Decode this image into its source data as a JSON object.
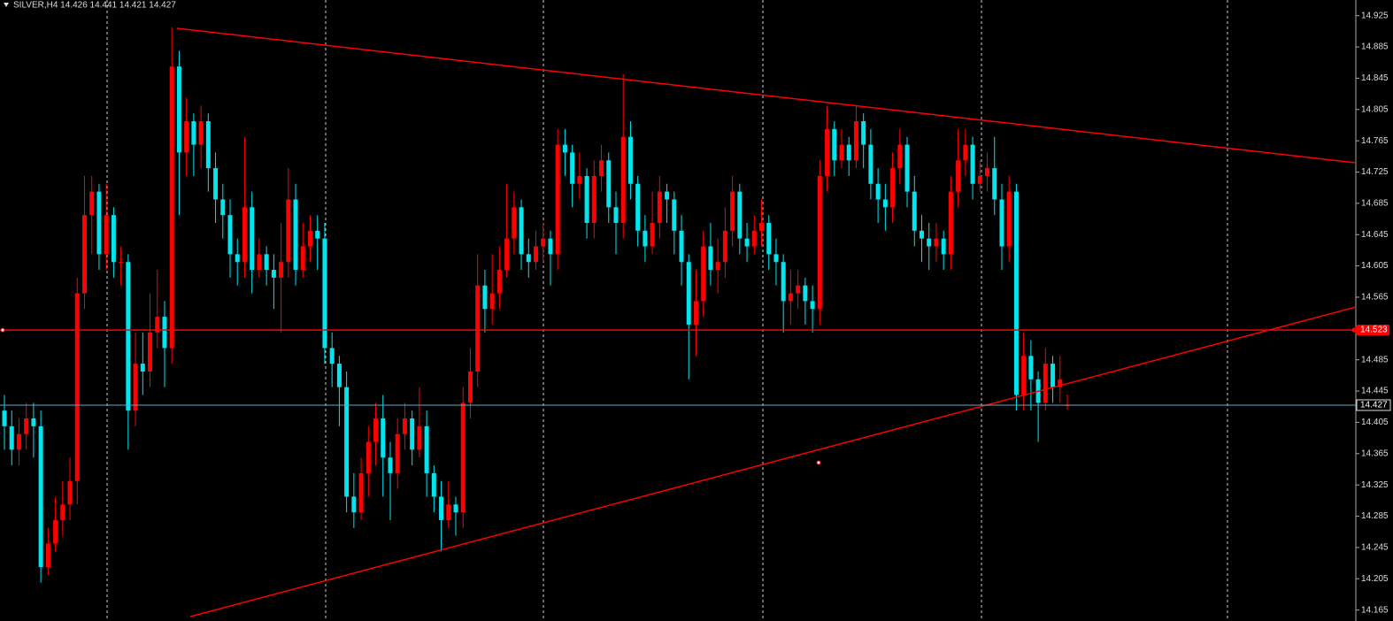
{
  "chart_data": {
    "type": "candlestick",
    "title": "SILVER,H4 14.426 14.441 14.421 14.427",
    "up_color": "#ff0000",
    "down_color": "#00e5ee",
    "ylim": [
      14.151,
      14.945
    ],
    "yticks": [
      14.925,
      14.885,
      14.845,
      14.805,
      14.765,
      14.725,
      14.685,
      14.645,
      14.605,
      14.565,
      14.525,
      14.485,
      14.445,
      14.405,
      14.365,
      14.325,
      14.285,
      14.245,
      14.205,
      14.165
    ],
    "hline": 14.523,
    "hline_color": "#ff0000",
    "bid": 14.427,
    "bid_color": "#5fa8c8",
    "open": [
      14.42,
      14.4,
      14.37,
      14.39,
      14.41,
      14.4,
      14.22,
      14.25,
      14.28,
      14.3,
      14.33,
      14.57,
      14.67,
      14.7,
      14.62,
      14.67,
      14.61,
      14.61,
      14.42,
      14.48,
      14.47,
      14.52,
      14.54,
      14.5,
      14.86,
      14.75,
      14.79,
      14.76,
      14.79,
      14.73,
      14.69,
      14.67,
      14.62,
      14.61,
      14.68,
      14.6,
      14.62,
      14.6,
      14.59,
      14.61,
      14.69,
      14.6,
      14.63,
      14.65,
      14.64,
      14.5,
      14.48,
      14.45,
      14.31,
      14.29,
      14.34,
      14.38,
      14.41,
      14.36,
      14.34,
      14.39,
      14.41,
      14.37,
      14.4,
      14.34,
      14.31,
      14.28,
      14.3,
      14.29,
      14.43,
      14.47,
      14.58,
      14.55,
      14.57,
      14.6,
      14.64,
      14.68,
      14.62,
      14.61,
      14.63,
      14.64,
      14.62,
      14.76,
      14.75,
      14.71,
      14.72,
      14.66,
      14.72,
      14.74,
      14.68,
      14.66,
      14.77,
      14.71,
      14.65,
      14.63,
      14.66,
      14.7,
      14.69,
      14.65,
      14.61,
      14.53,
      14.56,
      14.63,
      14.6,
      14.61,
      14.65,
      14.7,
      14.64,
      14.63,
      14.65,
      14.66,
      14.62,
      14.61,
      14.56,
      14.57,
      14.58,
      14.56,
      14.55,
      14.72,
      14.78,
      14.74,
      14.76,
      14.74,
      14.79,
      14.76,
      14.71,
      14.69,
      14.68,
      14.73,
      14.76,
      14.7,
      14.65,
      14.64,
      14.63,
      14.64,
      14.62,
      14.7,
      14.74,
      14.76,
      14.71,
      14.72,
      14.73,
      14.69,
      14.63,
      14.7,
      14.44,
      14.49,
      14.46,
      14.43,
      14.48,
      14.45,
      14.426
    ],
    "high": [
      14.44,
      14.42,
      14.41,
      14.43,
      14.43,
      14.42,
      14.27,
      14.31,
      14.33,
      14.36,
      14.59,
      14.72,
      14.72,
      14.71,
      14.71,
      14.68,
      14.63,
      14.62,
      14.52,
      14.52,
      14.57,
      14.6,
      14.56,
      14.91,
      14.88,
      14.82,
      14.8,
      14.81,
      14.8,
      14.75,
      14.71,
      14.69,
      14.64,
      14.77,
      14.7,
      14.64,
      14.63,
      14.62,
      14.66,
      14.73,
      14.71,
      14.66,
      14.67,
      14.67,
      14.66,
      14.52,
      14.49,
      14.47,
      14.34,
      14.36,
      14.4,
      14.43,
      14.44,
      14.38,
      14.41,
      14.43,
      14.42,
      14.45,
      14.42,
      14.35,
      14.33,
      14.33,
      14.31,
      14.45,
      14.5,
      14.62,
      14.6,
      14.62,
      14.63,
      14.71,
      14.7,
      14.69,
      14.64,
      14.65,
      14.66,
      14.65,
      14.78,
      14.78,
      14.76,
      14.75,
      14.73,
      14.74,
      14.76,
      14.75,
      14.7,
      14.85,
      14.79,
      14.72,
      14.67,
      14.7,
      14.72,
      14.71,
      14.7,
      14.67,
      14.62,
      14.6,
      14.65,
      14.66,
      14.64,
      14.68,
      14.72,
      14.71,
      14.66,
      14.67,
      14.69,
      14.67,
      14.64,
      14.62,
      14.6,
      14.6,
      14.59,
      14.58,
      14.74,
      14.81,
      14.79,
      14.78,
      14.77,
      14.81,
      14.8,
      14.78,
      14.73,
      14.71,
      14.75,
      14.78,
      14.77,
      14.72,
      14.67,
      14.66,
      14.66,
      14.65,
      14.72,
      14.78,
      14.78,
      14.77,
      14.74,
      14.75,
      14.77,
      14.71,
      14.72,
      14.71,
      14.52,
      14.51,
      14.47,
      14.5,
      14.49,
      14.49,
      14.441
    ],
    "low": [
      14.37,
      14.35,
      14.35,
      14.37,
      14.36,
      14.2,
      14.21,
      14.24,
      14.26,
      14.28,
      14.3,
      14.55,
      14.62,
      14.6,
      14.6,
      14.59,
      14.58,
      14.37,
      14.4,
      14.44,
      14.45,
      14.5,
      14.45,
      14.48,
      14.67,
      14.72,
      14.72,
      14.73,
      14.7,
      14.66,
      14.64,
      14.59,
      14.58,
      14.59,
      14.57,
      14.59,
      14.58,
      14.55,
      14.52,
      14.59,
      14.58,
      14.59,
      14.61,
      14.6,
      14.48,
      14.45,
      14.4,
      14.29,
      14.27,
      14.28,
      14.31,
      14.35,
      14.31,
      14.28,
      14.32,
      14.37,
      14.35,
      14.36,
      14.31,
      14.29,
      14.24,
      14.27,
      14.26,
      14.27,
      14.41,
      14.45,
      14.52,
      14.53,
      14.55,
      14.59,
      14.62,
      14.6,
      14.59,
      14.6,
      14.61,
      14.58,
      14.6,
      14.72,
      14.68,
      14.69,
      14.64,
      14.64,
      14.7,
      14.66,
      14.62,
      14.64,
      14.69,
      14.63,
      14.61,
      14.62,
      14.64,
      14.66,
      14.62,
      14.58,
      14.46,
      14.49,
      14.54,
      14.58,
      14.57,
      14.59,
      14.63,
      14.62,
      14.61,
      14.62,
      14.63,
      14.6,
      14.58,
      14.52,
      14.53,
      14.55,
      14.53,
      14.52,
      14.53,
      14.7,
      14.72,
      14.73,
      14.72,
      14.73,
      14.73,
      14.69,
      14.66,
      14.65,
      14.66,
      14.71,
      14.68,
      14.63,
      14.61,
      14.6,
      14.61,
      14.6,
      14.6,
      14.68,
      14.72,
      14.69,
      14.7,
      14.7,
      14.67,
      14.6,
      14.61,
      14.42,
      14.42,
      14.42,
      14.38,
      14.42,
      14.43,
      14.43,
      14.421
    ],
    "close": [
      14.4,
      14.37,
      14.39,
      14.41,
      14.4,
      14.22,
      14.25,
      14.28,
      14.3,
      14.33,
      14.57,
      14.67,
      14.7,
      14.62,
      14.67,
      14.61,
      14.61,
      14.42,
      14.48,
      14.47,
      14.52,
      14.54,
      14.5,
      14.86,
      14.75,
      14.79,
      14.76,
      14.79,
      14.73,
      14.69,
      14.67,
      14.62,
      14.61,
      14.68,
      14.6,
      14.62,
      14.6,
      14.59,
      14.61,
      14.69,
      14.6,
      14.63,
      14.65,
      14.64,
      14.5,
      14.48,
      14.45,
      14.31,
      14.29,
      14.34,
      14.38,
      14.41,
      14.36,
      14.34,
      14.39,
      14.41,
      14.37,
      14.4,
      14.34,
      14.31,
      14.28,
      14.3,
      14.29,
      14.43,
      14.47,
      14.58,
      14.55,
      14.57,
      14.6,
      14.64,
      14.68,
      14.62,
      14.61,
      14.63,
      14.64,
      14.62,
      14.76,
      14.75,
      14.71,
      14.72,
      14.66,
      14.72,
      14.74,
      14.68,
      14.66,
      14.77,
      14.71,
      14.65,
      14.63,
      14.66,
      14.7,
      14.69,
      14.65,
      14.61,
      14.53,
      14.56,
      14.63,
      14.6,
      14.61,
      14.65,
      14.7,
      14.64,
      14.63,
      14.65,
      14.66,
      14.62,
      14.61,
      14.56,
      14.57,
      14.58,
      14.56,
      14.55,
      14.72,
      14.78,
      14.74,
      14.76,
      14.74,
      14.79,
      14.76,
      14.71,
      14.69,
      14.68,
      14.73,
      14.76,
      14.7,
      14.65,
      14.64,
      14.63,
      14.64,
      14.62,
      14.7,
      14.74,
      14.76,
      14.71,
      14.72,
      14.73,
      14.69,
      14.63,
      14.7,
      14.44,
      14.49,
      14.46,
      14.43,
      14.48,
      14.45,
      14.46,
      14.427
    ]
  }
}
